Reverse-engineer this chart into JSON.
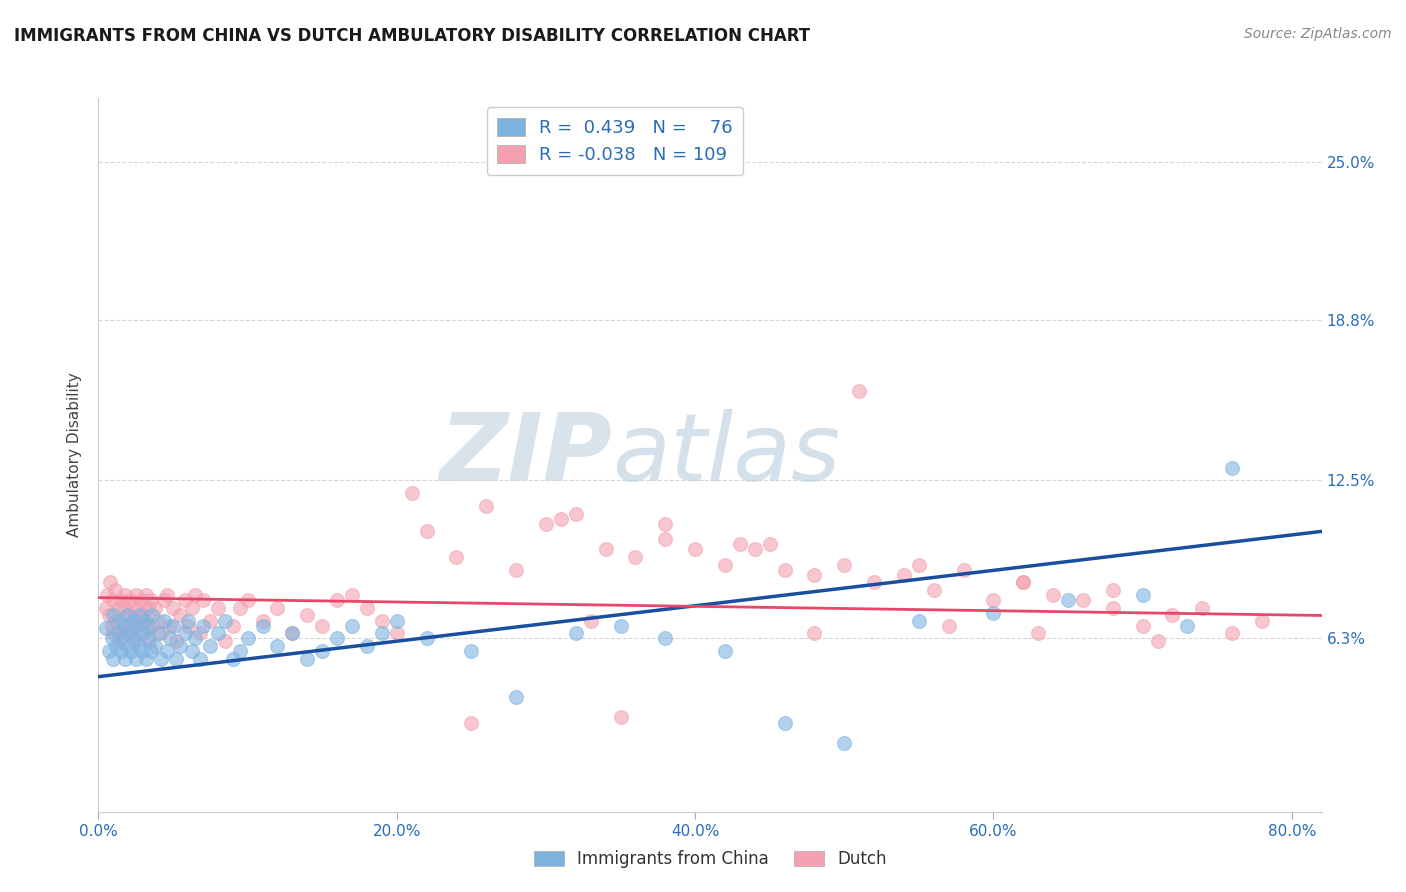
{
  "title": "IMMIGRANTS FROM CHINA VS DUTCH AMBULATORY DISABILITY CORRELATION CHART",
  "source_text": "Source: ZipAtlas.com",
  "ylabel": "Ambulatory Disability",
  "xlabel": "",
  "legend_label_1": "Immigrants from China",
  "legend_label_2": "Dutch",
  "r1": 0.439,
  "n1": 76,
  "r2": -0.038,
  "n2": 109,
  "color_blue": "#7EB3E0",
  "color_pink": "#F4A0B0",
  "color_blue_line": "#1A4E9E",
  "color_pink_line": "#E8476A",
  "watermark_zip": "ZIP",
  "watermark_atlas": "atlas",
  "xlim": [
    0.0,
    0.82
  ],
  "ylim": [
    -0.005,
    0.275
  ],
  "yticks": [
    0.063,
    0.125,
    0.188,
    0.25
  ],
  "ytick_labels": [
    "6.3%",
    "12.5%",
    "18.8%",
    "25.0%"
  ],
  "xticks": [
    0.0,
    0.2,
    0.4,
    0.6,
    0.8
  ],
  "xtick_labels": [
    "0.0%",
    "20.0%",
    "40.0%",
    "60.0%",
    "80.0%"
  ],
  "blue_x": [
    0.005,
    0.007,
    0.009,
    0.01,
    0.01,
    0.012,
    0.013,
    0.014,
    0.015,
    0.016,
    0.017,
    0.018,
    0.019,
    0.02,
    0.021,
    0.022,
    0.023,
    0.024,
    0.025,
    0.026,
    0.027,
    0.028,
    0.029,
    0.03,
    0.031,
    0.032,
    0.033,
    0.034,
    0.035,
    0.036,
    0.038,
    0.04,
    0.042,
    0.044,
    0.046,
    0.048,
    0.05,
    0.052,
    0.055,
    0.058,
    0.06,
    0.063,
    0.065,
    0.068,
    0.07,
    0.075,
    0.08,
    0.085,
    0.09,
    0.095,
    0.1,
    0.11,
    0.12,
    0.13,
    0.14,
    0.15,
    0.16,
    0.17,
    0.18,
    0.19,
    0.2,
    0.22,
    0.25,
    0.28,
    0.32,
    0.35,
    0.38,
    0.42,
    0.46,
    0.5,
    0.55,
    0.6,
    0.65,
    0.7,
    0.73,
    0.76
  ],
  "blue_y": [
    0.067,
    0.058,
    0.063,
    0.072,
    0.055,
    0.06,
    0.065,
    0.07,
    0.058,
    0.063,
    0.068,
    0.055,
    0.072,
    0.06,
    0.065,
    0.058,
    0.07,
    0.063,
    0.055,
    0.068,
    0.06,
    0.072,
    0.058,
    0.065,
    0.07,
    0.055,
    0.063,
    0.068,
    0.058,
    0.072,
    0.06,
    0.065,
    0.055,
    0.07,
    0.058,
    0.063,
    0.068,
    0.055,
    0.06,
    0.065,
    0.07,
    0.058,
    0.063,
    0.055,
    0.068,
    0.06,
    0.065,
    0.07,
    0.055,
    0.058,
    0.063,
    0.068,
    0.06,
    0.065,
    0.055,
    0.058,
    0.063,
    0.068,
    0.06,
    0.065,
    0.07,
    0.063,
    0.058,
    0.04,
    0.065,
    0.068,
    0.063,
    0.058,
    0.03,
    0.022,
    0.07,
    0.073,
    0.078,
    0.08,
    0.068,
    0.13
  ],
  "pink_x": [
    0.005,
    0.006,
    0.007,
    0.008,
    0.009,
    0.01,
    0.01,
    0.011,
    0.012,
    0.013,
    0.014,
    0.015,
    0.016,
    0.017,
    0.018,
    0.019,
    0.02,
    0.021,
    0.022,
    0.023,
    0.024,
    0.025,
    0.026,
    0.027,
    0.028,
    0.029,
    0.03,
    0.031,
    0.032,
    0.033,
    0.034,
    0.035,
    0.036,
    0.038,
    0.04,
    0.042,
    0.044,
    0.046,
    0.048,
    0.05,
    0.052,
    0.055,
    0.058,
    0.06,
    0.063,
    0.065,
    0.068,
    0.07,
    0.075,
    0.08,
    0.085,
    0.09,
    0.095,
    0.1,
    0.11,
    0.12,
    0.13,
    0.14,
    0.15,
    0.16,
    0.17,
    0.18,
    0.19,
    0.2,
    0.22,
    0.24,
    0.26,
    0.28,
    0.3,
    0.32,
    0.34,
    0.36,
    0.38,
    0.4,
    0.42,
    0.44,
    0.46,
    0.48,
    0.5,
    0.52,
    0.54,
    0.56,
    0.58,
    0.6,
    0.62,
    0.64,
    0.66,
    0.68,
    0.7,
    0.72,
    0.74,
    0.76,
    0.78,
    0.31,
    0.43,
    0.51,
    0.21,
    0.38,
    0.45,
    0.55,
    0.62,
    0.68,
    0.33,
    0.48,
    0.57,
    0.63,
    0.71,
    0.25,
    0.35
  ],
  "pink_y": [
    0.075,
    0.08,
    0.072,
    0.085,
    0.068,
    0.078,
    0.065,
    0.082,
    0.07,
    0.075,
    0.062,
    0.078,
    0.068,
    0.075,
    0.08,
    0.065,
    0.072,
    0.078,
    0.068,
    0.075,
    0.062,
    0.08,
    0.07,
    0.075,
    0.065,
    0.078,
    0.072,
    0.068,
    0.08,
    0.075,
    0.062,
    0.078,
    0.068,
    0.075,
    0.07,
    0.065,
    0.078,
    0.08,
    0.068,
    0.075,
    0.062,
    0.072,
    0.078,
    0.068,
    0.075,
    0.08,
    0.065,
    0.078,
    0.07,
    0.075,
    0.062,
    0.068,
    0.075,
    0.078,
    0.07,
    0.075,
    0.065,
    0.072,
    0.068,
    0.078,
    0.08,
    0.075,
    0.07,
    0.065,
    0.105,
    0.095,
    0.115,
    0.09,
    0.108,
    0.112,
    0.098,
    0.095,
    0.102,
    0.098,
    0.092,
    0.098,
    0.09,
    0.088,
    0.092,
    0.085,
    0.088,
    0.082,
    0.09,
    0.078,
    0.085,
    0.08,
    0.078,
    0.082,
    0.068,
    0.072,
    0.075,
    0.065,
    0.07,
    0.11,
    0.1,
    0.16,
    0.12,
    0.108,
    0.1,
    0.092,
    0.085,
    0.075,
    0.07,
    0.065,
    0.068,
    0.065,
    0.062,
    0.03,
    0.032
  ],
  "blue_trend_x": [
    0.0,
    0.82
  ],
  "blue_trend_y": [
    0.048,
    0.105
  ],
  "pink_trend_x": [
    0.0,
    0.82
  ],
  "pink_trend_y": [
    0.079,
    0.072
  ]
}
